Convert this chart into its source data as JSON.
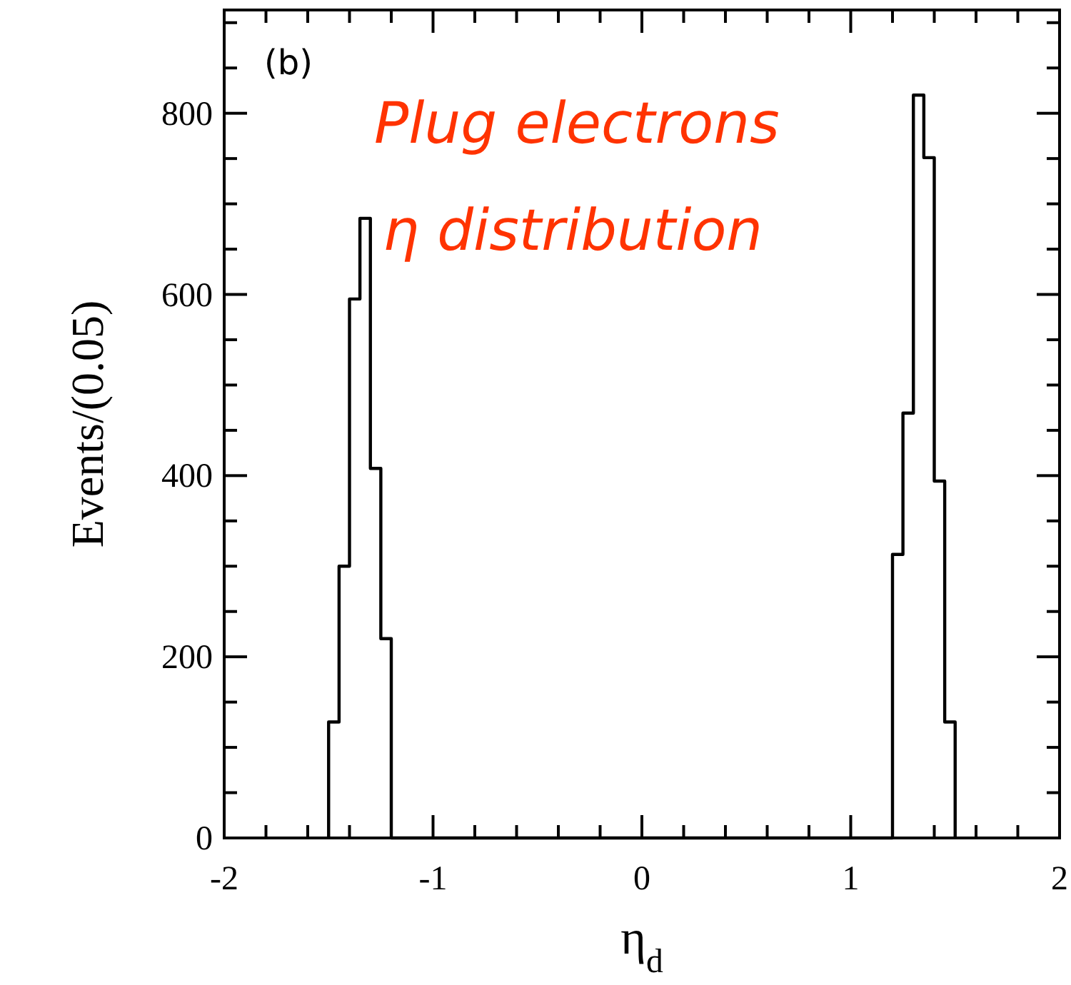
{
  "chart_data": {
    "type": "histogram",
    "xlabel": "η$_{d}$",
    "ylabel": "Events/(0.05)",
    "annotations": [
      "(b)",
      "Plug electrons",
      "η distribution"
    ],
    "bins": [
      -1.5,
      -1.45,
      -1.4,
      -1.35,
      -1.3,
      -1.25,
      -1.2,
      -1.15,
      -1.1,
      -1.05,
      -1,
      -0.95,
      -0.9,
      -0.85,
      -0.8,
      -0.75,
      -0.7,
      -0.65,
      -0.6,
      -0.55,
      -0.5,
      -0.45,
      -0.4,
      -0.35,
      -0.3,
      -0.25,
      -0.2,
      -0.15,
      -0.1,
      -0.05,
      0,
      0.05,
      0.1,
      0.15,
      0.2,
      0.25,
      0.3,
      0.35,
      0.4,
      0.45,
      0.5,
      0.55,
      0.6,
      0.65,
      0.7,
      0.75,
      0.8,
      0.85,
      0.9,
      0.95,
      1,
      1.05,
      1.1,
      1.15,
      1.2,
      1.25,
      1.3,
      1.35,
      1.4,
      1.45,
      1.5
    ],
    "values": [
      128,
      300,
      595,
      684,
      408,
      220,
      0,
      0,
      0,
      0,
      0,
      0,
      0,
      0,
      0,
      0,
      0,
      0,
      0,
      0,
      0,
      0,
      0,
      0,
      0,
      0,
      0,
      0,
      0,
      0,
      0,
      0,
      0,
      0,
      0,
      0,
      0,
      0,
      0,
      0,
      0,
      0,
      0,
      0,
      0,
      0,
      0,
      0,
      0,
      0,
      0,
      0,
      0,
      0,
      313,
      469,
      820,
      751,
      394,
      128
    ],
    "color": "#000000",
    "xlim": [
      -2,
      2
    ],
    "xticks": [
      -2,
      {
        "value": -1.8,
        "label": null
      },
      {
        "value": -1.6,
        "label": null
      },
      {
        "value": -1.4,
        "label": null
      },
      {
        "value": -1.2,
        "label": null
      },
      -1,
      {
        "value": -0.8,
        "label": null
      },
      {
        "value": -0.6,
        "label": null
      },
      {
        "value": -0.4,
        "label": null
      },
      {
        "value": -0.2,
        "label": null
      },
      0,
      {
        "value": 0.2,
        "label": null
      },
      {
        "value": 0.4,
        "label": null
      },
      {
        "value": 0.6,
        "label": null
      },
      {
        "value": 0.8,
        "label": null
      },
      1,
      {
        "value": 1.2,
        "label": null
      },
      {
        "value": 1.4,
        "label": null
      },
      {
        "value": 1.6,
        "label": null
      },
      {
        "value": 1.8,
        "label": null
      },
      2
    ],
    "ylim": [
      0,
      914
    ],
    "yticks": [
      0,
      {
        "value": 50,
        "label": null
      },
      {
        "value": 100,
        "label": null
      },
      {
        "value": 150,
        "label": null
      },
      200,
      {
        "value": 250,
        "label": null
      },
      {
        "value": 300,
        "label": null
      },
      {
        "value": 350,
        "label": null
      },
      400,
      {
        "value": 450,
        "label": null
      },
      {
        "value": 500,
        "label": null
      },
      {
        "value": 550,
        "label": null
      },
      600,
      {
        "value": 650,
        "label": null
      },
      {
        "value": 700,
        "label": null
      },
      {
        "value": 750,
        "label": null
      },
      800,
      {
        "value": 850,
        "label": null
      },
      {
        "value": 900,
        "label": null
      }
    ],
    "grid": false
  }
}
